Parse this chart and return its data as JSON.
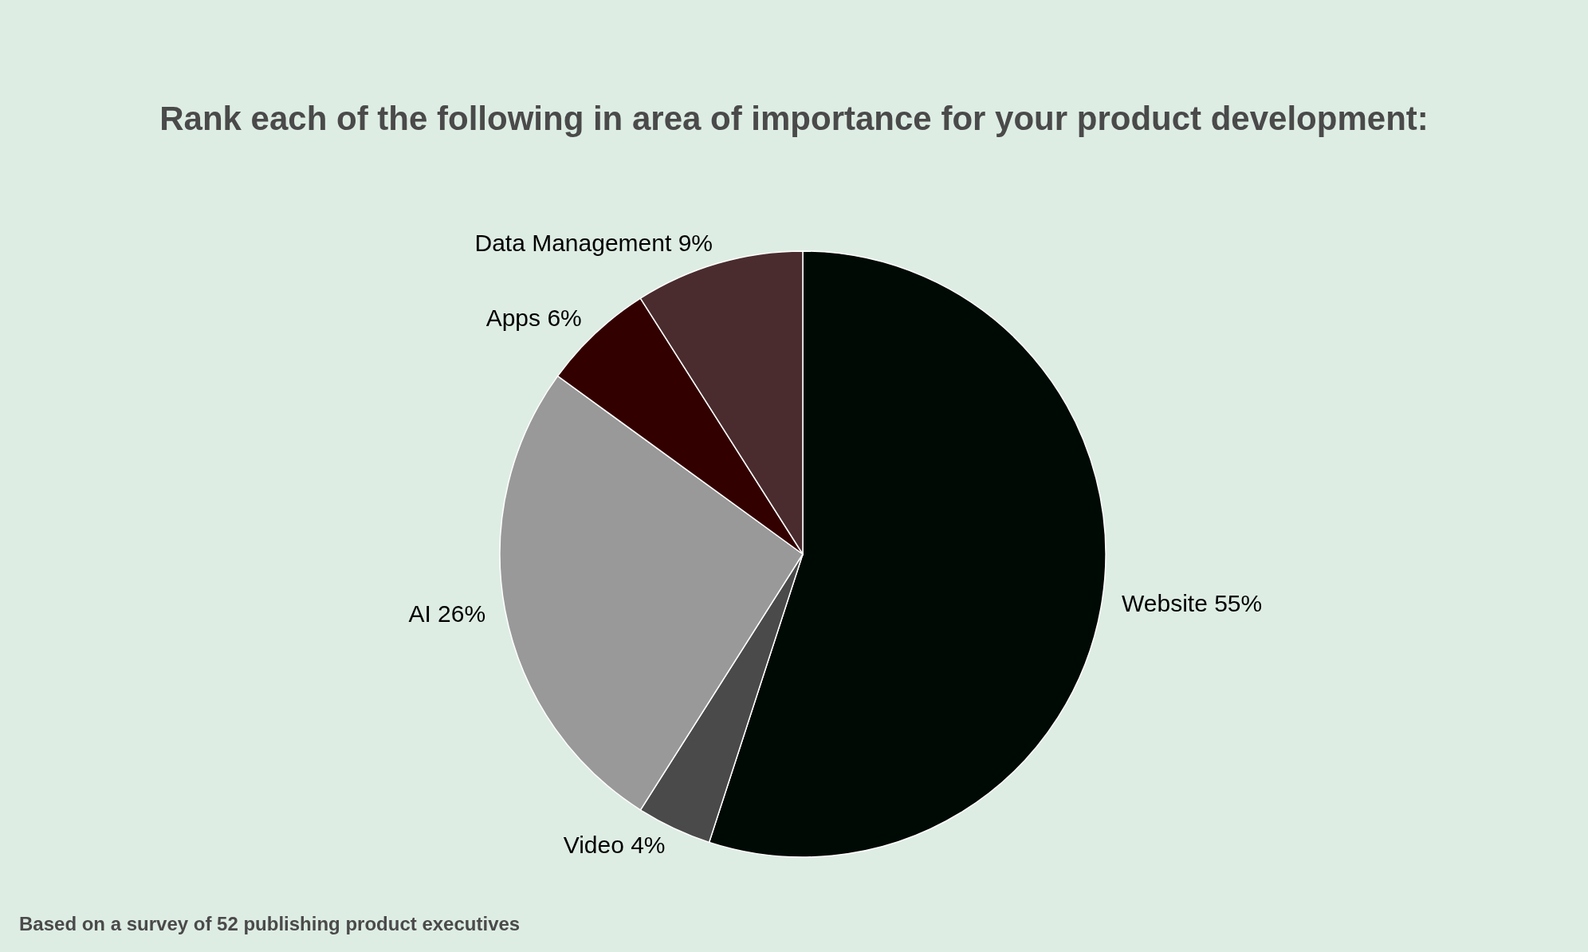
{
  "chart_data": {
    "type": "pie",
    "title": "Rank each of the following in area of importance for your product development:",
    "categories": [
      "Website",
      "Video",
      "AI",
      "Apps",
      "Data Management"
    ],
    "values": [
      55,
      4,
      26,
      6,
      9
    ],
    "value_labels": [
      "55%",
      "4%",
      "26%",
      "6%",
      "9%"
    ],
    "colors": [
      "#000a05",
      "#4a4a4a",
      "#999999",
      "#330000",
      "#4a2c2e"
    ],
    "annotations": [
      "Based on a survey of 52 publishing product executives"
    ],
    "legend": false
  }
}
